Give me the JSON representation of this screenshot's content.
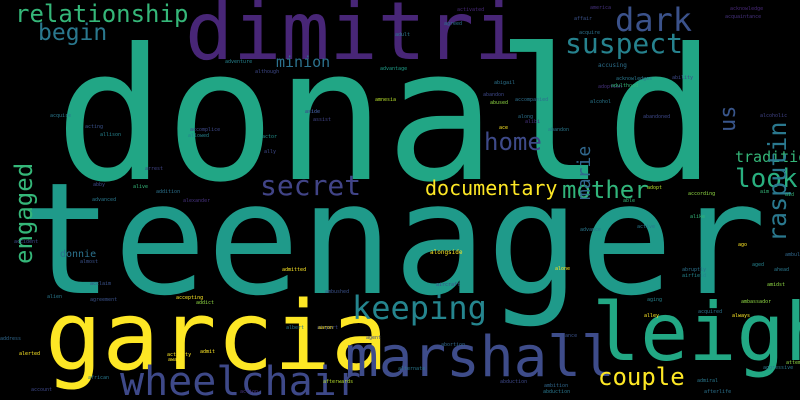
{
  "words": [
    {
      "text": "donald",
      "color": "#21a685",
      "vertical": false
    },
    {
      "text": "teenager",
      "color": "#1f9a8a",
      "vertical": false
    },
    {
      "text": "dimitri",
      "color": "#482677",
      "vertical": false
    },
    {
      "text": "garcia",
      "color": "#fde725",
      "vertical": false
    },
    {
      "text": "leigh",
      "color": "#22a884",
      "vertical": false
    },
    {
      "text": "marshall",
      "color": "#3e4c8a",
      "vertical": false
    },
    {
      "text": "wheelchair",
      "color": "#3e4989",
      "vertical": false
    },
    {
      "text": "keeping",
      "color": "#25858e",
      "vertical": false
    },
    {
      "text": "secret",
      "color": "#414487",
      "vertical": false
    },
    {
      "text": "documentary",
      "color": "#fde725",
      "vertical": false
    },
    {
      "text": "mother",
      "color": "#31b57b",
      "vertical": false
    },
    {
      "text": "look",
      "color": "#29af7f",
      "vertical": false
    },
    {
      "text": "couple",
      "color": "#fde725",
      "vertical": false
    },
    {
      "text": "suspect",
      "color": "#26828e",
      "vertical": false
    },
    {
      "text": "dark",
      "color": "#3b528b",
      "vertical": false
    },
    {
      "text": "relationship",
      "color": "#35b779",
      "vertical": false
    },
    {
      "text": "begin",
      "color": "#2a788e",
      "vertical": false
    },
    {
      "text": "home",
      "color": "#3e4a89",
      "vertical": false
    },
    {
      "text": "minion",
      "color": "#2c728e",
      "vertical": false
    },
    {
      "text": "tradition",
      "color": "#35b779",
      "vertical": false
    },
    {
      "text": "engaged",
      "color": "#35b779",
      "vertical": true
    },
    {
      "text": "rasputin",
      "color": "#2a788e",
      "vertical": true
    },
    {
      "text": "us",
      "color": "#39568c",
      "vertical": true
    },
    {
      "text": "marie",
      "color": "#31688e",
      "vertical": true
    },
    {
      "text": "donnie",
      "color": "#2c728e",
      "vertical": false
    },
    {
      "text": "accomplice",
      "color": "#3e4989",
      "vertical": false
    },
    {
      "text": "acknowledge",
      "color": "#482878",
      "vertical": false
    },
    {
      "text": "acquaintance",
      "color": "#46327e",
      "vertical": false
    },
    {
      "text": "accusing",
      "color": "#2d708e",
      "vertical": false
    },
    {
      "text": "alongside",
      "color": "#fde725",
      "vertical": false
    },
    {
      "text": "ambulance",
      "color": "#31688e",
      "vertical": false
    },
    {
      "text": "aim",
      "color": "#35b779",
      "vertical": false
    },
    {
      "text": "according",
      "color": "#8fd744",
      "vertical": false
    },
    {
      "text": "amnesia",
      "color": "#b5de2b",
      "vertical": false
    },
    {
      "text": "ambushed",
      "color": "#3b528b",
      "vertical": false
    },
    {
      "text": "activated",
      "color": "#482878",
      "vertical": false
    },
    {
      "text": "adoption",
      "color": "#46327e",
      "vertical": false
    },
    {
      "text": "abandoned",
      "color": "#3e4989",
      "vertical": false
    },
    {
      "text": "accompanied",
      "color": "#2d708e",
      "vertical": false
    },
    {
      "text": "advantage",
      "color": "#1f9e89",
      "vertical": false
    },
    {
      "text": "adventure",
      "color": "#26828e",
      "vertical": false
    },
    {
      "text": "although",
      "color": "#3e4989",
      "vertical": false
    },
    {
      "text": "alien",
      "color": "#2a788e",
      "vertical": false
    },
    {
      "text": "acting",
      "color": "#3b528b",
      "vertical": false
    },
    {
      "text": "allison",
      "color": "#26828e",
      "vertical": false
    },
    {
      "text": "actor",
      "color": "#21918c",
      "vertical": false
    },
    {
      "text": "arrest",
      "color": "#414487",
      "vertical": false
    },
    {
      "text": "addition",
      "color": "#2c728e",
      "vertical": false
    },
    {
      "text": "alive",
      "color": "#35b779",
      "vertical": false
    },
    {
      "text": "abduction",
      "color": "#3e4989",
      "vertical": false
    },
    {
      "text": "advanced",
      "color": "#2a788e",
      "vertical": false
    },
    {
      "text": "alexander",
      "color": "#46327e",
      "vertical": false
    },
    {
      "text": "abruptly",
      "color": "#2c728e",
      "vertical": false
    },
    {
      "text": "airfield",
      "color": "#25858e",
      "vertical": false
    },
    {
      "text": "alone",
      "color": "#fde725",
      "vertical": false
    },
    {
      "text": "accepting",
      "color": "#fde725",
      "vertical": false
    },
    {
      "text": "addict",
      "color": "#8fd744",
      "vertical": false
    },
    {
      "text": "agreement",
      "color": "#3b528b",
      "vertical": false
    },
    {
      "text": "admitted",
      "color": "#fde725",
      "vertical": false
    },
    {
      "text": "abortion",
      "color": "#31688e",
      "vertical": false
    },
    {
      "text": "alternate",
      "color": "#2a788e",
      "vertical": false
    },
    {
      "text": "alley",
      "color": "#fde725",
      "vertical": false
    },
    {
      "text": "acquired",
      "color": "#2c728e",
      "vertical": false
    },
    {
      "text": "always",
      "color": "#fde725",
      "vertical": false
    },
    {
      "text": "ambassador",
      "color": "#8fd744",
      "vertical": false
    },
    {
      "text": "alliance",
      "color": "#3b528b",
      "vertical": false
    },
    {
      "text": "ambition",
      "color": "#31688e",
      "vertical": false
    },
    {
      "text": "abduction",
      "color": "#2a788e",
      "vertical": false
    },
    {
      "text": "afterwards",
      "color": "#b5de2b",
      "vertical": false
    },
    {
      "text": "african",
      "color": "#2a788e",
      "vertical": false
    },
    {
      "text": "account",
      "color": "#3e4989",
      "vertical": false
    },
    {
      "text": "action",
      "color": "#46327e",
      "vertical": false
    },
    {
      "text": "alerted",
      "color": "#fde725",
      "vertical": false
    },
    {
      "text": "admiral",
      "color": "#2a788e",
      "vertical": false
    },
    {
      "text": "attempt",
      "color": "#8fd744",
      "vertical": false
    },
    {
      "text": "address",
      "color": "#31688e",
      "vertical": false
    },
    {
      "text": "aggressive",
      "color": "#2a788e",
      "vertical": false
    },
    {
      "text": "afterlife",
      "color": "#2c728e",
      "vertical": false
    },
    {
      "text": "ago",
      "color": "#fde725",
      "vertical": false
    },
    {
      "text": "alike",
      "color": "#35b779",
      "vertical": false
    },
    {
      "text": "accident",
      "color": "#3e4989",
      "vertical": false
    },
    {
      "text": "active",
      "color": "#2a788e",
      "vertical": false
    },
    {
      "text": "aside",
      "color": "#3b528b",
      "vertical": false
    },
    {
      "text": "aging",
      "color": "#26828e",
      "vertical": false
    },
    {
      "text": "ally",
      "color": "#3e4989",
      "vertical": false
    },
    {
      "text": "along",
      "color": "#2c728e",
      "vertical": false
    },
    {
      "text": "abused",
      "color": "#8fd744",
      "vertical": false
    },
    {
      "text": "acquire",
      "color": "#2a788e",
      "vertical": false
    },
    {
      "text": "almost",
      "color": "#3b528b",
      "vertical": false
    },
    {
      "text": "alibi",
      "color": "#46327e",
      "vertical": false
    },
    {
      "text": "aid",
      "color": "#35b779",
      "vertical": false
    },
    {
      "text": "ace",
      "color": "#fde725",
      "vertical": false
    },
    {
      "text": "aged",
      "color": "#26828e",
      "vertical": false
    },
    {
      "text": "airport",
      "color": "#3e4989",
      "vertical": false
    },
    {
      "text": "activity",
      "color": "#fde725",
      "vertical": false
    },
    {
      "text": "aware",
      "color": "#fde725",
      "vertical": false
    },
    {
      "text": "assist",
      "color": "#414487",
      "vertical": false
    },
    {
      "text": "ahead",
      "color": "#2a788e",
      "vertical": false
    },
    {
      "text": "amidst",
      "color": "#8fd744",
      "vertical": false
    },
    {
      "text": "acclaim",
      "color": "#3b528b",
      "vertical": false
    },
    {
      "text": "admit",
      "color": "#fde725",
      "vertical": false
    },
    {
      "text": "ability",
      "color": "#3e4989",
      "vertical": false
    },
    {
      "text": "abandon",
      "color": "#2a788e",
      "vertical": false
    },
    {
      "text": "adopt",
      "color": "#b5de2b",
      "vertical": false
    },
    {
      "text": "abigail",
      "color": "#2c728e",
      "vertical": false
    },
    {
      "text": "able",
      "color": "#35b779",
      "vertical": false
    },
    {
      "text": "alcohol",
      "color": "#2a788e",
      "vertical": false
    },
    {
      "text": "aside",
      "color": "#3b528b",
      "vertical": false
    },
    {
      "text": "allowed",
      "color": "#26828e",
      "vertical": false
    },
    {
      "text": "abby",
      "color": "#3e4989",
      "vertical": false
    },
    {
      "text": "advance",
      "color": "#2a788e",
      "vertical": false
    },
    {
      "text": "america",
      "color": "#46327e",
      "vertical": false
    },
    {
      "text": "acquire",
      "color": "#2c728e",
      "vertical": false
    },
    {
      "text": "affair",
      "color": "#3b528b",
      "vertical": false
    },
    {
      "text": "adult",
      "color": "#2a788e",
      "vertical": false
    },
    {
      "text": "agent",
      "color": "#3e4989",
      "vertical": false
    },
    {
      "text": "aaron",
      "color": "#fde725",
      "vertical": false
    },
    {
      "text": "albert",
      "color": "#2a788e",
      "vertical": false
    },
    {
      "text": "abandon",
      "color": "#3e4989",
      "vertical": false
    },
    {
      "text": "acknowledges",
      "color": "#2a788e",
      "vertical": false
    },
    {
      "text": "adulthood",
      "color": "#35b779",
      "vertical": false
    },
    {
      "text": "aircraft",
      "color": "#3b528b",
      "vertical": false
    },
    {
      "text": "agreed",
      "color": "#2c728e",
      "vertical": false
    },
    {
      "text": "alcoholic",
      "color": "#414487",
      "vertical": false
    }
  ]
}
